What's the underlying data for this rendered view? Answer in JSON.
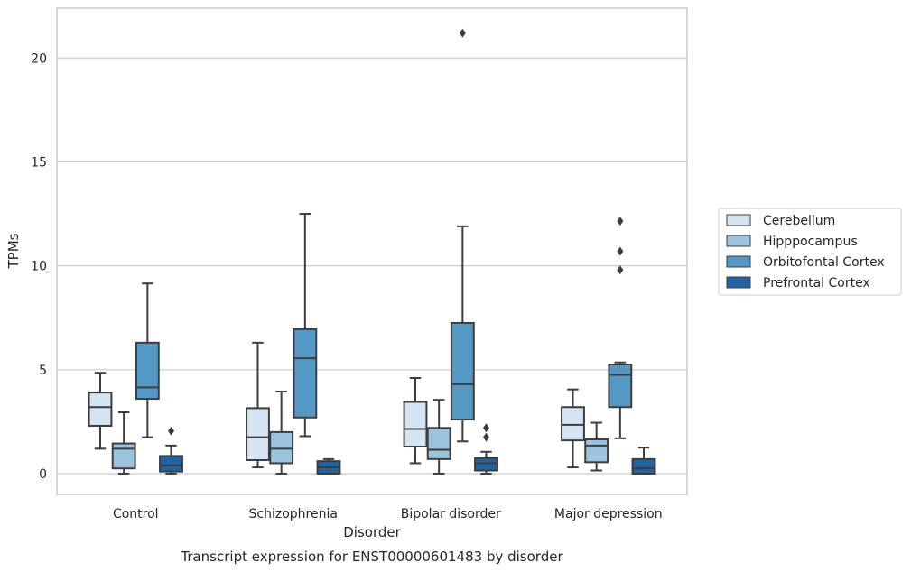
{
  "caption": "Transcript expression for ENST00000601483 by disorder",
  "colors": {
    "Cerebellum": "#d6e5f3",
    "Hipppocampus": "#9cc4de",
    "Orbitofontal Cortex": "#5498c6",
    "Prefrontal Cortex": "#2363a3",
    "box_edge": "#3d3d3d",
    "grid": "#cccccc",
    "frame": "#cccccc"
  },
  "chart_data": {
    "type": "box",
    "xlabel": "Disorder",
    "ylabel": "TPMs",
    "ylim": [
      -1.0,
      22.4
    ],
    "yticks": [
      0,
      5,
      10,
      15,
      20
    ],
    "grid": "horizontal",
    "legend_placement": "right",
    "categories": [
      "Control",
      "Schizophrenia",
      "Bipolar disorder",
      "Major depression"
    ],
    "series": [
      {
        "name": "Cerebellum",
        "boxes": [
          {
            "whisker_low": 1.2,
            "q1": 2.3,
            "median": 3.2,
            "q3": 3.9,
            "whisker_high": 4.85,
            "outliers": []
          },
          {
            "whisker_low": 0.3,
            "q1": 0.65,
            "median": 1.75,
            "q3": 3.15,
            "whisker_high": 6.3,
            "outliers": []
          },
          {
            "whisker_low": 0.5,
            "q1": 1.3,
            "median": 2.15,
            "q3": 3.45,
            "whisker_high": 4.6,
            "outliers": []
          },
          {
            "whisker_low": 0.3,
            "q1": 1.6,
            "median": 2.35,
            "q3": 3.2,
            "whisker_high": 4.05,
            "outliers": []
          }
        ]
      },
      {
        "name": "Hipppocampus",
        "boxes": [
          {
            "whisker_low": 0.0,
            "q1": 0.25,
            "median": 1.2,
            "q3": 1.45,
            "whisker_high": 2.95,
            "outliers": []
          },
          {
            "whisker_low": 0.0,
            "q1": 0.5,
            "median": 1.2,
            "q3": 2.0,
            "whisker_high": 3.95,
            "outliers": []
          },
          {
            "whisker_low": 0.0,
            "q1": 0.7,
            "median": 1.15,
            "q3": 2.2,
            "whisker_high": 3.55,
            "outliers": []
          },
          {
            "whisker_low": 0.15,
            "q1": 0.55,
            "median": 1.35,
            "q3": 1.65,
            "whisker_high": 2.45,
            "outliers": []
          }
        ]
      },
      {
        "name": "Orbitofontal Cortex",
        "boxes": [
          {
            "whisker_low": 1.75,
            "q1": 3.6,
            "median": 4.15,
            "q3": 6.3,
            "whisker_high": 9.15,
            "outliers": []
          },
          {
            "whisker_low": 1.8,
            "q1": 2.7,
            "median": 5.55,
            "q3": 6.95,
            "whisker_high": 12.5,
            "outliers": []
          },
          {
            "whisker_low": 1.55,
            "q1": 2.6,
            "median": 4.3,
            "q3": 7.25,
            "whisker_high": 11.9,
            "outliers": [
              21.2
            ]
          },
          {
            "whisker_low": 1.7,
            "q1": 3.2,
            "median": 4.75,
            "q3": 5.25,
            "whisker_high": 5.35,
            "outliers": [
              9.8,
              10.7,
              12.15
            ]
          }
        ]
      },
      {
        "name": "Prefrontal Cortex",
        "boxes": [
          {
            "whisker_low": 0.0,
            "q1": 0.1,
            "median": 0.4,
            "q3": 0.85,
            "whisker_high": 1.35,
            "outliers": [
              2.05
            ]
          },
          {
            "whisker_low": 0.0,
            "q1": 0.0,
            "median": 0.3,
            "q3": 0.6,
            "whisker_high": 0.7,
            "outliers": []
          },
          {
            "whisker_low": 0.0,
            "q1": 0.15,
            "median": 0.5,
            "q3": 0.75,
            "whisker_high": 1.05,
            "outliers": [
              1.75,
              2.2
            ]
          },
          {
            "whisker_low": 0.0,
            "q1": 0.0,
            "median": 0.25,
            "q3": 0.7,
            "whisker_high": 1.25,
            "outliers": []
          }
        ]
      }
    ]
  }
}
